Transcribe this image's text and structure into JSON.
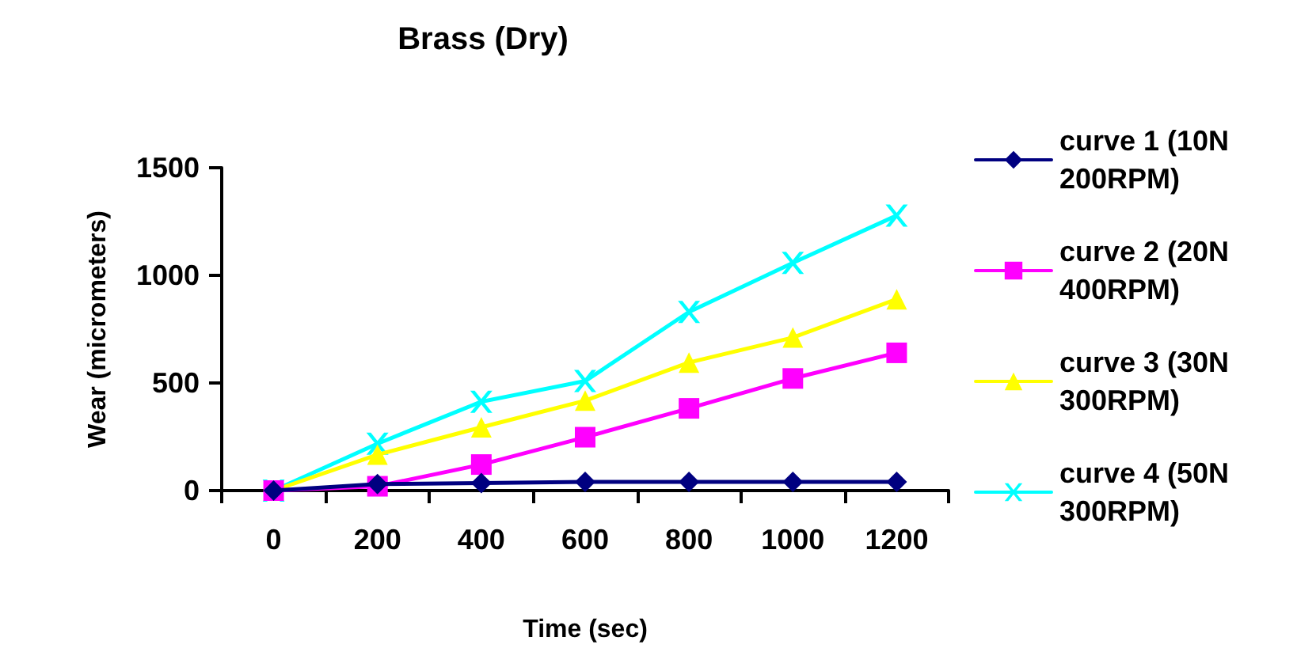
{
  "chart_data": {
    "type": "line",
    "title": "Brass (Dry)",
    "xlabel": "Time (sec)",
    "ylabel": "Wear (micrometers)",
    "categories": [
      "0",
      "200",
      "400",
      "600",
      "800",
      "1000",
      "1200"
    ],
    "ylim": [
      0,
      1500
    ],
    "yticks": [
      0,
      500,
      1000,
      1500
    ],
    "grid": false,
    "legend": "right",
    "line_style": "solid",
    "series": [
      {
        "name": "curve 1 (10N 200RPM)",
        "color": "#000080",
        "marker": "diamond",
        "values": [
          0,
          30,
          35,
          40,
          40,
          40,
          40
        ]
      },
      {
        "name": "curve 2 (20N 400RPM)",
        "color": "#ff00ff",
        "marker": "square",
        "values": [
          0,
          20,
          121,
          248,
          382,
          521,
          640
        ]
      },
      {
        "name": "curve 3 (30N 300RPM)",
        "color": "#ffff00",
        "marker": "triangle",
        "values": [
          0,
          167,
          294,
          418,
          595,
          711,
          889
        ]
      },
      {
        "name": "curve 4 (50N 300RPM)",
        "color": "#00ffff",
        "marker": "cross",
        "values": [
          0,
          218,
          413,
          509,
          830,
          1058,
          1278
        ]
      }
    ]
  }
}
